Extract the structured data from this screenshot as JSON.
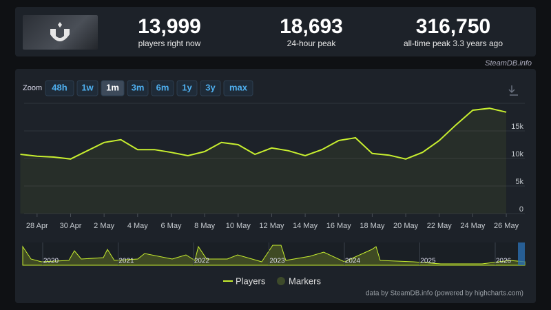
{
  "header": {
    "stats": [
      {
        "value": "13,999",
        "label": "players right now"
      },
      {
        "value": "18,693",
        "label": "24-hour peak"
      },
      {
        "value": "316,750",
        "label": "all-time peak 3.3 years ago"
      }
    ]
  },
  "source": "SteamDB.info",
  "zoom": {
    "label": "Zoom",
    "options": [
      "48h",
      "1w",
      "1m",
      "3m",
      "6m",
      "1y",
      "3y",
      "max"
    ],
    "active": 2
  },
  "chart_data": {
    "type": "line",
    "categories": [
      null,
      "28 Apr",
      null,
      "30 Apr",
      null,
      "2 May",
      null,
      "4 May",
      null,
      "6 May",
      null,
      "8 May",
      null,
      "10 May",
      null,
      "12 May",
      null,
      "14 May",
      null,
      "16 May",
      null,
      "18 May",
      null,
      "20 May",
      null,
      "22 May",
      null,
      "24 May",
      null,
      "26 May"
    ],
    "series": [
      {
        "name": "Players",
        "color": "#c8ef2f",
        "values": [
          10750,
          10400,
          10250,
          9900,
          11400,
          12900,
          13400,
          11600,
          11600,
          11100,
          10500,
          11250,
          12900,
          12500,
          10750,
          11900,
          11400,
          10500,
          11600,
          13250,
          13750,
          10900,
          10600,
          9900,
          11100,
          13250,
          16100,
          18750,
          19100,
          18400
        ]
      }
    ],
    "ylim": [
      0,
      20000
    ],
    "yticks": [
      0,
      {
        "value": 5000,
        "label": "5k"
      },
      {
        "value": 10000,
        "label": "10k"
      },
      {
        "value": 15000,
        "label": "15k"
      },
      {
        "value": 20000,
        "label": ""
      }
    ],
    "grid": true,
    "marker_legend": "Markers",
    "navigator_years": [
      "2020",
      "2021",
      "2022",
      "2023",
      "2024",
      "2025",
      "2026"
    ]
  },
  "credit": "data by SteamDB.info (powered by highcharts.com)"
}
